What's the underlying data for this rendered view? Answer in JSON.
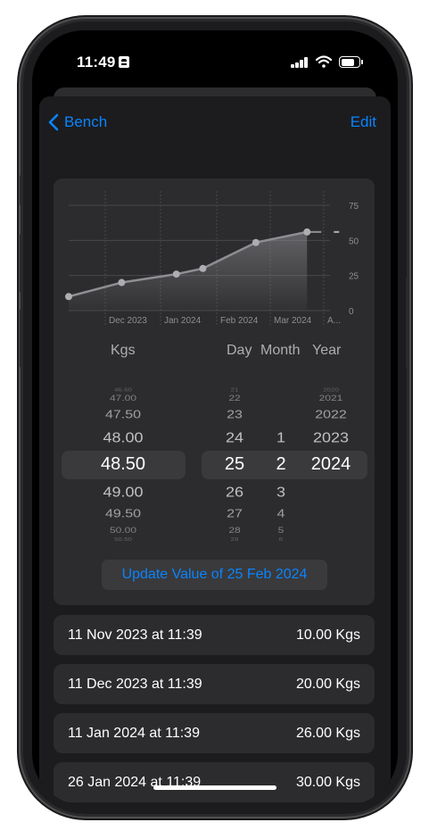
{
  "status_bar": {
    "time": "11:49"
  },
  "nav": {
    "back_label": "Bench",
    "edit_label": "Edit"
  },
  "chart_data": {
    "type": "area",
    "x_tick_labels": [
      "Dec 2023",
      "Jan 2024",
      "Feb 2024",
      "Mar 2024",
      "A..."
    ],
    "y_tick_labels": [
      "75",
      "50",
      "25",
      "0"
    ],
    "ylim": [
      0,
      75
    ],
    "series": [
      {
        "points": [
          {
            "x": "2023-11-11",
            "y": 10
          },
          {
            "x": "2023-12-11",
            "y": 20
          },
          {
            "x": "2024-01-11",
            "y": 26
          },
          {
            "x": "2024-01-26",
            "y": 30
          },
          {
            "x": "2024-02-25",
            "y": 48.5
          },
          {
            "x": "2024-03-25",
            "y": 56
          }
        ]
      }
    ],
    "grid": true,
    "line_color": "#8e8e93"
  },
  "picker": {
    "weight_header": "Kgs",
    "day_header": "Day",
    "month_header": "Month",
    "year_header": "Year",
    "weights": [
      "46.50",
      "47.00",
      "47.50",
      "48.00",
      "48.50",
      "49.00",
      "49.50",
      "50.00",
      "50.50"
    ],
    "days": [
      "21",
      "22",
      "23",
      "24",
      "25",
      "26",
      "27",
      "28",
      "29"
    ],
    "months": [
      "",
      "",
      "",
      "1",
      "2",
      "3",
      "4",
      "5",
      "6"
    ],
    "years": [
      "2020",
      "2021",
      "2022",
      "2023",
      "2024",
      "",
      "",
      "",
      ""
    ]
  },
  "update_button": {
    "label": "Update Value of  25 Feb 2024"
  },
  "entries": [
    {
      "date": "11 Nov 2023 at 11:39",
      "value": "10.00 Kgs"
    },
    {
      "date": "11 Dec 2023 at 11:39",
      "value": "20.00 Kgs"
    },
    {
      "date": "11 Jan 2024 at 11:39",
      "value": "26.00 Kgs"
    },
    {
      "date": "26 Jan 2024 at 11:39",
      "value": "30.00 Kgs"
    }
  ],
  "colors": {
    "accent": "#0a84ff",
    "background": "#1c1c1e",
    "card": "#2c2c2e"
  }
}
